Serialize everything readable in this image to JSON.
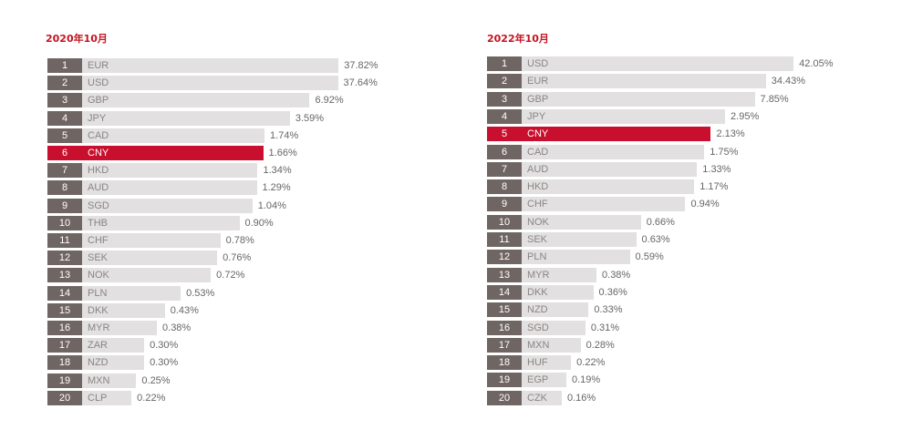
{
  "colors": {
    "title": "#c41422",
    "rank_box": "#6f6663",
    "bar": "#e2e0e0",
    "highlight": "#c8102e",
    "code_text": "#8a8584",
    "value_text": "#666666"
  },
  "chart_data": [
    {
      "type": "bar",
      "orientation": "horizontal",
      "title": "2020年10月",
      "highlight_category": "CNY",
      "categories": [
        "EUR",
        "USD",
        "GBP",
        "JPY",
        "CAD",
        "CNY",
        "HKD",
        "AUD",
        "SGD",
        "THB",
        "CHF",
        "SEK",
        "NOK",
        "PLN",
        "DKK",
        "MYR",
        "ZAR",
        "NZD",
        "MXN",
        "CLP"
      ],
      "ranks": [
        "1",
        "2",
        "3",
        "4",
        "5",
        "6",
        "7",
        "8",
        "9",
        "10",
        "11",
        "12",
        "13",
        "14",
        "15",
        "16",
        "17",
        "18",
        "19",
        "20"
      ],
      "values": [
        37.82,
        37.64,
        6.92,
        3.59,
        1.74,
        1.66,
        1.34,
        1.29,
        1.04,
        0.9,
        0.78,
        0.76,
        0.72,
        0.53,
        0.43,
        0.38,
        0.3,
        0.3,
        0.25,
        0.22
      ],
      "value_labels": [
        "37.82%",
        "37.64%",
        "6.92%",
        "3.59%",
        "1.74%",
        "1.66%",
        "1.34%",
        "1.29%",
        "1.04%",
        "0.90%",
        "0.78%",
        "0.76%",
        "0.72%",
        "0.53%",
        "0.43%",
        "0.38%",
        "0.30%",
        "0.30%",
        "0.25%",
        "0.22%"
      ],
      "axis_scale": "non-linear (rank-ordered bar lengths)",
      "grid": false,
      "legend": "none"
    },
    {
      "type": "bar",
      "orientation": "horizontal",
      "title": "2022年10月",
      "highlight_category": "CNY",
      "categories": [
        "USD",
        "EUR",
        "GBP",
        "JPY",
        "CNY",
        "CAD",
        "AUD",
        "HKD",
        "CHF",
        "NOK",
        "SEK",
        "PLN",
        "MYR",
        "DKK",
        "NZD",
        "SGD",
        "MXN",
        "HUF",
        "EGP",
        "CZK"
      ],
      "ranks": [
        "1",
        "2",
        "3",
        "4",
        "5",
        "6",
        "7",
        "8",
        "9",
        "10",
        "11",
        "12",
        "13",
        "14",
        "15",
        "16",
        "17",
        "18",
        "19",
        "20"
      ],
      "values": [
        42.05,
        34.43,
        7.85,
        2.95,
        2.13,
        1.75,
        1.33,
        1.17,
        0.94,
        0.66,
        0.63,
        0.59,
        0.38,
        0.36,
        0.33,
        0.31,
        0.28,
        0.22,
        0.19,
        0.16
      ],
      "value_labels": [
        "42.05%",
        "34.43%",
        "7.85%",
        "2.95%",
        "2.13%",
        "1.75%",
        "1.33%",
        "1.17%",
        "0.94%",
        "0.66%",
        "0.63%",
        "0.59%",
        "0.38%",
        "0.36%",
        "0.33%",
        "0.31%",
        "0.28%",
        "0.22%",
        "0.19%",
        "0.16%"
      ],
      "axis_scale": "non-linear (rank-ordered bar lengths)",
      "grid": false,
      "legend": "none"
    }
  ]
}
